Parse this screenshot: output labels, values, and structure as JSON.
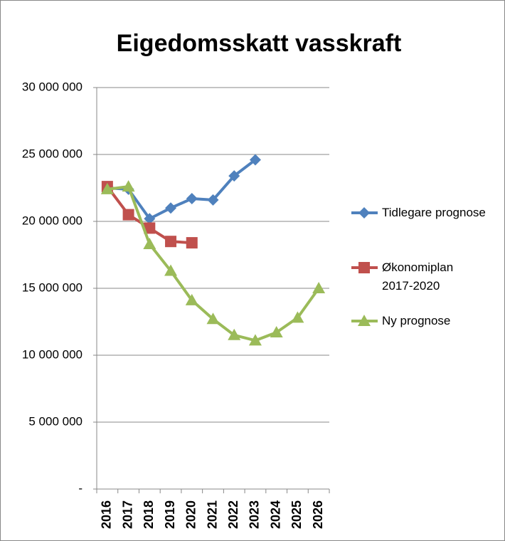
{
  "chart_data": {
    "type": "line",
    "title": "Eigedomsskatt vasskraft",
    "categories": [
      "2016",
      "2017",
      "2018",
      "2019",
      "2020",
      "2021",
      "2022",
      "2023",
      "2024",
      "2025",
      "2026"
    ],
    "series": [
      {
        "name": "Tidlegare prognose",
        "color": "#4f81bd",
        "marker": "diamond",
        "values": [
          22500000,
          22400000,
          20200000,
          21000000,
          21700000,
          21600000,
          23400000,
          24600000,
          null,
          null,
          null
        ]
      },
      {
        "name": "Økonomiplan 2017-2020",
        "color": "#c0504d",
        "marker": "square",
        "values": [
          22600000,
          20500000,
          19500000,
          18500000,
          18400000,
          null,
          null,
          null,
          null,
          null,
          null
        ]
      },
      {
        "name": "Ny prognose",
        "color": "#9bbb59",
        "marker": "triangle",
        "values": [
          22400000,
          22600000,
          18300000,
          16300000,
          14100000,
          12700000,
          11500000,
          11100000,
          11700000,
          12800000,
          15000000
        ]
      }
    ],
    "ylim": [
      0,
      30000000
    ],
    "yticks": [
      {
        "value": 0,
        "label": "-"
      },
      {
        "value": 5000000,
        "label": "5 000 000"
      },
      {
        "value": 10000000,
        "label": "10 000 000"
      },
      {
        "value": 15000000,
        "label": "15 000 000"
      },
      {
        "value": 20000000,
        "label": "20 000 000"
      },
      {
        "value": 25000000,
        "label": "25 000 000"
      },
      {
        "value": 30000000,
        "label": "30 000 000"
      }
    ],
    "grid": true,
    "legend": "right"
  }
}
